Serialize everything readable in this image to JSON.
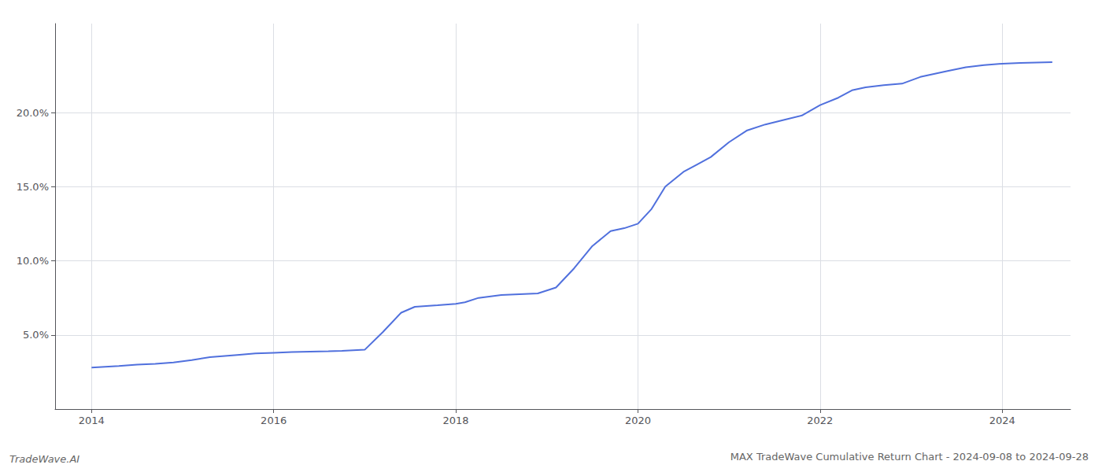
{
  "chart_data": {
    "type": "line",
    "title": "MAX TradeWave Cumulative Return Chart - 2024-09-08 to 2024-09-28",
    "annotations": [
      {
        "text": "TradeWave.AI"
      }
    ],
    "x": [
      2014.0,
      2014.15,
      2014.3,
      2014.5,
      2014.7,
      2014.9,
      2015.1,
      2015.3,
      2015.6,
      2015.8,
      2016.0,
      2016.2,
      2016.4,
      2016.6,
      2016.75,
      2017.0,
      2017.2,
      2017.4,
      2017.55,
      2017.8,
      2018.0,
      2018.1,
      2018.25,
      2018.5,
      2018.7,
      2018.9,
      2019.1,
      2019.3,
      2019.5,
      2019.7,
      2019.85,
      2020.0,
      2020.15,
      2020.3,
      2020.5,
      2020.65,
      2020.8,
      2021.0,
      2021.2,
      2021.4,
      2021.6,
      2021.8,
      2022.0,
      2022.2,
      2022.35,
      2022.5,
      2022.7,
      2022.9,
      2023.1,
      2023.4,
      2023.6,
      2023.8,
      2024.0,
      2024.2,
      2024.55
    ],
    "values": [
      2.8,
      2.85,
      2.9,
      3.0,
      3.05,
      3.15,
      3.3,
      3.5,
      3.65,
      3.75,
      3.8,
      3.85,
      3.88,
      3.9,
      3.92,
      4.0,
      5.2,
      6.5,
      6.9,
      7.0,
      7.1,
      7.2,
      7.5,
      7.7,
      7.75,
      7.8,
      8.2,
      9.5,
      11.0,
      12.0,
      12.2,
      12.5,
      13.5,
      15.0,
      16.0,
      16.5,
      17.0,
      18.0,
      18.8,
      19.2,
      19.5,
      19.8,
      20.5,
      21.0,
      21.5,
      21.7,
      21.85,
      21.95,
      22.4,
      22.8,
      23.05,
      23.2,
      23.3,
      23.35,
      23.4
    ],
    "xlim": [
      2013.6,
      2024.75
    ],
    "xticks": [
      2014,
      2016,
      2018,
      2020,
      2022,
      2024
    ],
    "ylim": [
      0,
      26
    ],
    "yticks": [
      {
        "value": 5.0,
        "label": "5.0%"
      },
      {
        "value": 10.0,
        "label": "10.0%"
      },
      {
        "value": 15.0,
        "label": "15.0%"
      },
      {
        "value": 20.0,
        "label": "20.0%"
      }
    ],
    "grid": true
  }
}
